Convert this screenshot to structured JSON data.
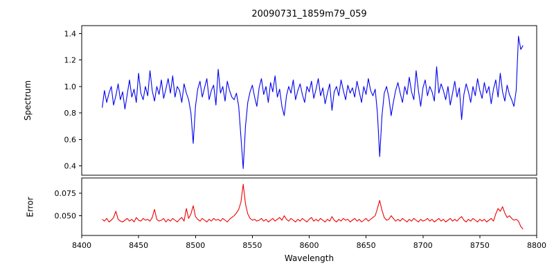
{
  "chart_data": {
    "type": "line",
    "title": "20090731_1859m79_059",
    "xlabel": "Wavelength",
    "grid": false,
    "legend": "none",
    "xlim": [
      8400,
      8800
    ],
    "x_ticks": [
      8400,
      8450,
      8500,
      8550,
      8600,
      8650,
      8700,
      8750,
      8800
    ],
    "x_start": 8418,
    "x_step": 2,
    "panels": [
      {
        "name": "spectrum",
        "ylabel": "Spectrum",
        "color": "#0000ee",
        "ylim": [
          0.33,
          1.46
        ],
        "y_ticks": [
          0.4,
          0.6,
          0.8,
          1.0,
          1.2,
          1.4
        ],
        "y_tick_labels": [
          "0.4",
          "0.6",
          "0.8",
          "1.0",
          "1.2",
          "1.4"
        ],
        "features": "noisy continuum near 1.0 with absorption dips at ~8498 (0.57), ~8542 (0.38), ~8662 (0.47) and emission spike to ~1.38 at ~8784",
        "values": [
          0.84,
          0.97,
          0.88,
          0.95,
          1.0,
          0.86,
          0.93,
          1.02,
          0.9,
          0.96,
          0.83,
          0.94,
          1.05,
          0.92,
          0.98,
          0.88,
          1.1,
          0.95,
          0.9,
          1.0,
          0.93,
          1.12,
          0.97,
          0.89,
          1.0,
          0.94,
          1.05,
          0.91,
          0.98,
          1.06,
          0.95,
          1.08,
          0.92,
          1.0,
          0.97,
          0.88,
          1.02,
          0.95,
          0.9,
          0.8,
          0.57,
          0.85,
          0.98,
          1.04,
          0.92,
          0.99,
          1.06,
          0.9,
          0.97,
          1.01,
          0.86,
          1.13,
          0.95,
          1.0,
          0.89,
          1.04,
          0.97,
          0.92,
          0.9,
          0.95,
          0.85,
          0.62,
          0.38,
          0.7,
          0.88,
          0.96,
          1.01,
          0.92,
          0.85,
          0.99,
          1.06,
          0.94,
          1.0,
          0.88,
          1.03,
          0.96,
          1.08,
          0.92,
          0.98,
          0.85,
          0.78,
          0.93,
          1.0,
          0.95,
          1.05,
          0.9,
          0.97,
          1.02,
          0.94,
          0.88,
          1.0,
          0.96,
          1.04,
          0.91,
          0.98,
          1.06,
          0.93,
          0.99,
          0.87,
          0.95,
          1.02,
          0.82,
          0.96,
          1.0,
          0.93,
          1.05,
          0.97,
          0.9,
          1.01,
          0.95,
          0.99,
          0.92,
          1.04,
          0.96,
          0.88,
          1.0,
          0.94,
          1.06,
          0.97,
          0.93,
          0.98,
          0.8,
          0.47,
          0.78,
          0.95,
          1.0,
          0.92,
          0.78,
          0.88,
          0.97,
          1.03,
          0.95,
          0.88,
          1.0,
          0.94,
          1.07,
          0.96,
          0.9,
          1.12,
          0.97,
          0.85,
          0.99,
          1.05,
          0.93,
          1.0,
          0.96,
          0.89,
          1.15,
          0.95,
          1.02,
          0.97,
          0.9,
          1.0,
          0.86,
          0.95,
          1.04,
          0.92,
          0.99,
          0.75,
          0.94,
          1.02,
          0.96,
          0.88,
          1.0,
          0.93,
          1.06,
          0.97,
          0.91,
          1.03,
          0.95,
          1.0,
          0.87,
          0.98,
          1.05,
          0.92,
          1.1,
          0.96,
          0.89,
          1.01,
          0.94,
          0.9,
          0.85,
          0.97,
          1.38,
          1.28,
          1.31
        ]
      },
      {
        "name": "error",
        "ylabel": "Error",
        "color": "#ee0000",
        "ylim": [
          0.028,
          0.092
        ],
        "y_ticks": [
          0.05,
          0.075
        ],
        "y_tick_labels": [
          "0.050",
          "0.075"
        ],
        "features": "baseline ~0.045 with spikes at absorption lines: ~0.085 at 8542, ~0.067 at 8662, ~0.060 near 8490-8500 and 8765-8775; drops to ~0.035 at right edge",
        "values": [
          0.046,
          0.044,
          0.047,
          0.043,
          0.045,
          0.048,
          0.055,
          0.046,
          0.044,
          0.043,
          0.045,
          0.047,
          0.044,
          0.046,
          0.043,
          0.048,
          0.045,
          0.044,
          0.047,
          0.045,
          0.046,
          0.044,
          0.048,
          0.057,
          0.046,
          0.044,
          0.045,
          0.047,
          0.043,
          0.046,
          0.044,
          0.047,
          0.045,
          0.043,
          0.046,
          0.048,
          0.044,
          0.058,
          0.047,
          0.052,
          0.061,
          0.049,
          0.046,
          0.044,
          0.047,
          0.045,
          0.043,
          0.046,
          0.044,
          0.047,
          0.045,
          0.046,
          0.044,
          0.047,
          0.045,
          0.043,
          0.046,
          0.048,
          0.05,
          0.053,
          0.057,
          0.065,
          0.085,
          0.063,
          0.052,
          0.047,
          0.045,
          0.046,
          0.044,
          0.045,
          0.047,
          0.044,
          0.046,
          0.043,
          0.045,
          0.047,
          0.044,
          0.046,
          0.048,
          0.045,
          0.05,
          0.046,
          0.044,
          0.047,
          0.045,
          0.043,
          0.046,
          0.044,
          0.047,
          0.045,
          0.043,
          0.046,
          0.048,
          0.044,
          0.046,
          0.044,
          0.047,
          0.045,
          0.043,
          0.046,
          0.044,
          0.049,
          0.045,
          0.043,
          0.046,
          0.044,
          0.047,
          0.045,
          0.046,
          0.043,
          0.045,
          0.047,
          0.044,
          0.046,
          0.043,
          0.045,
          0.047,
          0.044,
          0.046,
          0.048,
          0.05,
          0.058,
          0.067,
          0.056,
          0.048,
          0.045,
          0.046,
          0.05,
          0.047,
          0.044,
          0.046,
          0.044,
          0.047,
          0.045,
          0.043,
          0.046,
          0.044,
          0.047,
          0.045,
          0.043,
          0.046,
          0.044,
          0.045,
          0.047,
          0.044,
          0.046,
          0.043,
          0.045,
          0.047,
          0.044,
          0.046,
          0.043,
          0.045,
          0.047,
          0.044,
          0.046,
          0.044,
          0.047,
          0.049,
          0.045,
          0.043,
          0.046,
          0.044,
          0.047,
          0.045,
          0.043,
          0.046,
          0.044,
          0.046,
          0.043,
          0.045,
          0.047,
          0.044,
          0.052,
          0.058,
          0.055,
          0.06,
          0.053,
          0.048,
          0.05,
          0.047,
          0.045,
          0.046,
          0.044,
          0.038,
          0.035
        ]
      }
    ]
  }
}
